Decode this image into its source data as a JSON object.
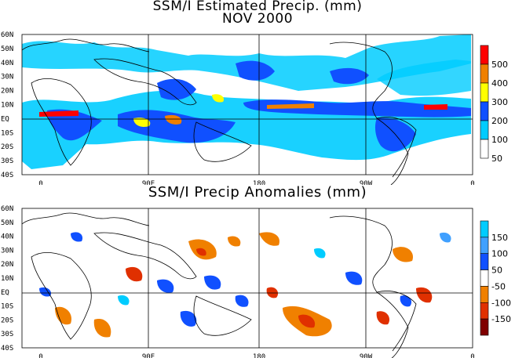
{
  "panel1": {
    "title": "SSM/I Estimated Precip. (mm)",
    "subtitle": "NOV 2000",
    "lat_labels": [
      "60N",
      "50N",
      "40N",
      "30N",
      "20N",
      "10N",
      "EQ",
      "10S",
      "20S",
      "30S",
      "40S"
    ],
    "lon_labels": [
      "0",
      "90E",
      "180",
      "90W",
      "0"
    ],
    "colorbar": {
      "labels": [
        "500",
        "400",
        "300",
        "200",
        "100",
        "50"
      ],
      "colors": [
        "#ff0000",
        "#f08000",
        "#ffff00",
        "#1050ff",
        "#00ccff",
        "#ffffff"
      ]
    }
  },
  "panel2": {
    "title": "SSM/I Precip Anomalies (mm)",
    "lat_labels": [
      "60N",
      "50N",
      "40N",
      "30N",
      "20N",
      "10N",
      "EQ",
      "10S",
      "20S",
      "30S",
      "40S"
    ],
    "lon_labels": [
      "0",
      "90E",
      "180",
      "90W",
      "0"
    ],
    "colorbar": {
      "labels": [
        "150",
        "100",
        "50",
        "-50",
        "-100",
        "-150"
      ],
      "colors": [
        "#00ccff",
        "#40a0ff",
        "#1050ff",
        "#ffffff",
        "#f08000",
        "#e03000",
        "#800000"
      ]
    }
  },
  "colors": {
    "background": "#ffffff",
    "land_outline": "#000000",
    "light_blue": "#00ccff",
    "dark_blue": "#1050ff",
    "yellow": "#ffff00",
    "orange": "#f08000",
    "red": "#ff0000"
  }
}
